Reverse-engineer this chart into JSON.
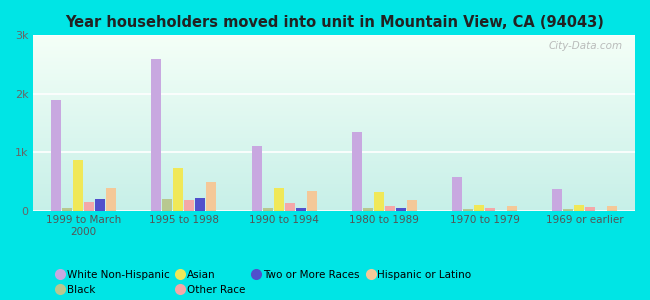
{
  "title": "Year householders moved into unit in Mountain View, CA (94043)",
  "categories": [
    "1999 to March\n2000",
    "1995 to 1998",
    "1990 to 1994",
    "1980 to 1989",
    "1970 to 1979",
    "1969 or earlier"
  ],
  "series_order": [
    "White Non-Hispanic",
    "Black",
    "Asian",
    "Other Race",
    "Two or More Races",
    "Hispanic or Latino"
  ],
  "series": {
    "White Non-Hispanic": [
      1900,
      2600,
      1100,
      1350,
      570,
      370
    ],
    "Black": [
      50,
      200,
      50,
      50,
      30,
      30
    ],
    "Asian": [
      870,
      730,
      380,
      310,
      100,
      100
    ],
    "Other Race": [
      150,
      175,
      130,
      80,
      50,
      55
    ],
    "Two or More Races": [
      190,
      220,
      40,
      40,
      0,
      0
    ],
    "Hispanic or Latino": [
      390,
      490,
      340,
      175,
      70,
      70
    ]
  },
  "colors": {
    "White Non-Hispanic": "#c8a8e0",
    "Black": "#b8c890",
    "Asian": "#f0e858",
    "Other Race": "#f4a8a8",
    "Two or More Races": "#5050cc",
    "Hispanic or Latino": "#f4c898"
  },
  "ylim": [
    0,
    3000
  ],
  "yticks": [
    0,
    1000,
    2000,
    3000
  ],
  "ytick_labels": [
    "0",
    "1k",
    "2k",
    "3k"
  ],
  "background_color": "#00e5e5",
  "watermark": "City-Data.com",
  "legend_row1": [
    "White Non-Hispanic",
    "Black",
    "Asian",
    "Other Race"
  ],
  "legend_row2": [
    "Two or More Races",
    "Hispanic or Latino"
  ]
}
